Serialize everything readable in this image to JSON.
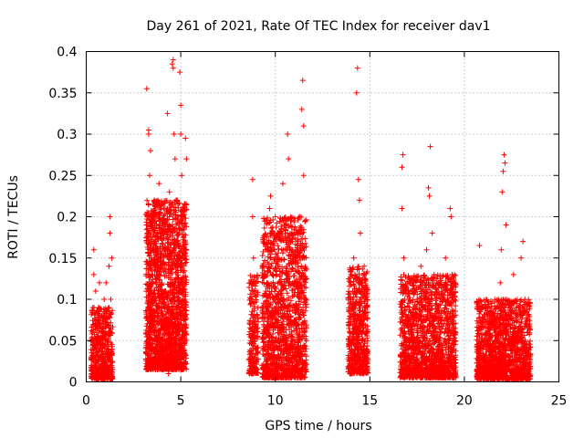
{
  "chart_data": {
    "type": "scatter",
    "title": "Day 261 of 2021, Rate Of TEC Index for receiver dav1",
    "xlabel": "GPS time / hours",
    "ylabel": "ROTI / TECUs",
    "xlim": [
      0,
      25
    ],
    "ylim": [
      0,
      0.4
    ],
    "xticks": [
      "0",
      "5",
      "10",
      "15",
      "20",
      "25"
    ],
    "yticks": [
      "0",
      "0.05",
      "0.1",
      "0.15",
      "0.2",
      "0.25",
      "0.3",
      "0.35",
      "0.4"
    ],
    "grid": true,
    "marker": "plus",
    "color": "#ff0000",
    "series": [
      {
        "points": [
          [
            0.3,
            0.02
          ],
          [
            0.3,
            0.05
          ],
          [
            0.35,
            0.09
          ],
          [
            0.4,
            0.13
          ],
          [
            0.4,
            0.16
          ],
          [
            0.45,
            0.03
          ],
          [
            0.5,
            0.07
          ],
          [
            0.5,
            0.11
          ],
          [
            0.55,
            0.01
          ],
          [
            0.6,
            0.05
          ],
          [
            0.65,
            0.09
          ],
          [
            0.7,
            0.12
          ],
          [
            0.75,
            0.04
          ],
          [
            0.8,
            0.08
          ],
          [
            0.85,
            0.02
          ],
          [
            0.9,
            0.06
          ],
          [
            0.95,
            0.1
          ],
          [
            1.0,
            0.03
          ],
          [
            1.0,
            0.07
          ],
          [
            1.05,
            0.12
          ],
          [
            1.1,
            0.02
          ],
          [
            1.15,
            0.05
          ],
          [
            1.2,
            0.09
          ],
          [
            1.2,
            0.14
          ],
          [
            1.25,
            0.18
          ],
          [
            1.25,
            0.2
          ],
          [
            1.3,
            0.06
          ],
          [
            1.3,
            0.1
          ],
          [
            1.35,
            0.02
          ],
          [
            1.35,
            0.15
          ],
          [
            3.2,
            0.355
          ],
          [
            3.3,
            0.3
          ],
          [
            3.3,
            0.305
          ],
          [
            3.4,
            0.28
          ],
          [
            3.35,
            0.25
          ],
          [
            3.4,
            0.2
          ],
          [
            3.45,
            0.15
          ],
          [
            3.5,
            0.1
          ],
          [
            3.5,
            0.05
          ],
          [
            3.55,
            0.02
          ],
          [
            3.6,
            0.22
          ],
          [
            3.65,
            0.17
          ],
          [
            3.7,
            0.12
          ],
          [
            3.75,
            0.07
          ],
          [
            3.8,
            0.03
          ],
          [
            3.85,
            0.24
          ],
          [
            3.9,
            0.19
          ],
          [
            3.95,
            0.14
          ],
          [
            4.0,
            0.09
          ],
          [
            4.05,
            0.04
          ],
          [
            4.1,
            0.21
          ],
          [
            4.15,
            0.16
          ],
          [
            4.2,
            0.11
          ],
          [
            4.25,
            0.06
          ],
          [
            4.3,
            0.325
          ],
          [
            4.35,
            0.01
          ],
          [
            4.4,
            0.2
          ],
          [
            4.4,
            0.23
          ],
          [
            4.45,
            0.15
          ],
          [
            4.5,
            0.1
          ],
          [
            4.55,
            0.385
          ],
          [
            4.6,
            0.39
          ],
          [
            4.6,
            0.38
          ],
          [
            4.65,
            0.3
          ],
          [
            4.7,
            0.27
          ],
          [
            4.75,
            0.22
          ],
          [
            4.8,
            0.17
          ],
          [
            4.85,
            0.12
          ],
          [
            4.9,
            0.07
          ],
          [
            4.9,
            0.02
          ],
          [
            4.95,
            0.375
          ],
          [
            5.0,
            0.335
          ],
          [
            5.0,
            0.3
          ],
          [
            5.05,
            0.25
          ],
          [
            5.1,
            0.2
          ],
          [
            5.15,
            0.15
          ],
          [
            5.2,
            0.1
          ],
          [
            5.2,
            0.05
          ],
          [
            5.25,
            0.295
          ],
          [
            5.3,
            0.27
          ],
          [
            8.7,
            0.05
          ],
          [
            8.75,
            0.1
          ],
          [
            8.8,
            0.2
          ],
          [
            8.8,
            0.245
          ],
          [
            8.85,
            0.15
          ],
          [
            8.9,
            0.03
          ],
          [
            8.95,
            0.07
          ],
          [
            9.0,
            0.12
          ],
          [
            9.3,
            0.02
          ],
          [
            9.4,
            0.06
          ],
          [
            9.5,
            0.11
          ],
          [
            9.6,
            0.16
          ],
          [
            9.7,
            0.21
          ],
          [
            9.75,
            0.225
          ],
          [
            9.8,
            0.18
          ],
          [
            9.85,
            0.13
          ],
          [
            9.9,
            0.08
          ],
          [
            9.95,
            0.03
          ],
          [
            10.0,
            0.2
          ],
          [
            10.1,
            0.15
          ],
          [
            10.2,
            0.1
          ],
          [
            10.3,
            0.05
          ],
          [
            10.4,
            0.24
          ],
          [
            10.5,
            0.19
          ],
          [
            10.6,
            0.14
          ],
          [
            10.65,
            0.3
          ],
          [
            10.7,
            0.27
          ],
          [
            10.7,
            0.09
          ],
          [
            10.8,
            0.04
          ],
          [
            10.9,
            0.17
          ],
          [
            11.0,
            0.12
          ],
          [
            11.1,
            0.07
          ],
          [
            11.2,
            0.02
          ],
          [
            11.3,
            0.2
          ],
          [
            11.4,
            0.33
          ],
          [
            11.45,
            0.365
          ],
          [
            11.5,
            0.31
          ],
          [
            11.5,
            0.25
          ],
          [
            11.55,
            0.15
          ],
          [
            11.6,
            0.1
          ],
          [
            13.9,
            0.03
          ],
          [
            13.95,
            0.08
          ],
          [
            14.0,
            0.13
          ],
          [
            14.05,
            0.05
          ],
          [
            14.1,
            0.1
          ],
          [
            14.15,
            0.15
          ],
          [
            14.2,
            0.02
          ],
          [
            14.25,
            0.06
          ],
          [
            14.3,
            0.35
          ],
          [
            14.35,
            0.38
          ],
          [
            14.4,
            0.245
          ],
          [
            14.45,
            0.22
          ],
          [
            14.5,
            0.18
          ],
          [
            14.55,
            0.12
          ],
          [
            14.6,
            0.07
          ],
          [
            14.65,
            0.02
          ],
          [
            14.7,
            0.14
          ],
          [
            14.75,
            0.09
          ],
          [
            14.8,
            0.04
          ],
          [
            14.85,
            0.11
          ],
          [
            16.7,
            0.26
          ],
          [
            16.7,
            0.21
          ],
          [
            16.75,
            0.275
          ],
          [
            16.8,
            0.15
          ],
          [
            16.85,
            0.1
          ],
          [
            16.9,
            0.05
          ],
          [
            16.95,
            0.02
          ],
          [
            17.1,
            0.12
          ],
          [
            17.2,
            0.07
          ],
          [
            17.3,
            0.03
          ],
          [
            17.5,
            0.1
          ],
          [
            17.6,
            0.05
          ],
          [
            17.7,
            0.14
          ],
          [
            17.8,
            0.09
          ],
          [
            17.9,
            0.04
          ],
          [
            18.0,
            0.16
          ],
          [
            18.1,
            0.235
          ],
          [
            18.15,
            0.225
          ],
          [
            18.2,
            0.285
          ],
          [
            18.3,
            0.18
          ],
          [
            18.4,
            0.13
          ],
          [
            18.5,
            0.08
          ],
          [
            18.6,
            0.03
          ],
          [
            18.7,
            0.12
          ],
          [
            18.8,
            0.07
          ],
          [
            18.9,
            0.02
          ],
          [
            19.0,
            0.15
          ],
          [
            19.1,
            0.1
          ],
          [
            19.2,
            0.05
          ],
          [
            19.25,
            0.21
          ],
          [
            19.3,
            0.2
          ],
          [
            19.35,
            0.13
          ],
          [
            19.4,
            0.08
          ],
          [
            19.45,
            0.03
          ],
          [
            19.5,
            0.06
          ],
          [
            20.7,
            0.01
          ],
          [
            20.75,
            0.03
          ],
          [
            20.8,
            0.065
          ],
          [
            20.85,
            0.085
          ],
          [
            20.8,
            0.165
          ],
          [
            21.0,
            0.02
          ],
          [
            21.2,
            0.05
          ],
          [
            21.4,
            0.03
          ],
          [
            21.6,
            0.07
          ],
          [
            21.8,
            0.1
          ],
          [
            21.9,
            0.12
          ],
          [
            21.95,
            0.16
          ],
          [
            22.0,
            0.23
          ],
          [
            22.05,
            0.255
          ],
          [
            22.1,
            0.275
          ],
          [
            22.15,
            0.265
          ],
          [
            22.2,
            0.19
          ],
          [
            22.4,
            0.09
          ],
          [
            22.6,
            0.13
          ],
          [
            22.8,
            0.06
          ],
          [
            23.0,
            0.15
          ],
          [
            23.1,
            0.17
          ],
          [
            23.2,
            0.1
          ],
          [
            23.3,
            0.04
          ],
          [
            23.45,
            0.07
          ]
        ]
      }
    ],
    "dense_clusters": [
      {
        "from": 0.25,
        "to": 1.4,
        "ymin": 0.003,
        "ymax": 0.09,
        "n": 520
      },
      {
        "from": 3.15,
        "to": 5.3,
        "ymin": 0.015,
        "ymax": 0.22,
        "n": 1900
      },
      {
        "from": 8.6,
        "to": 9.1,
        "ymin": 0.01,
        "ymax": 0.13,
        "n": 220
      },
      {
        "from": 9.3,
        "to": 11.65,
        "ymin": 0.005,
        "ymax": 0.2,
        "n": 1400
      },
      {
        "from": 13.85,
        "to": 14.9,
        "ymin": 0.01,
        "ymax": 0.14,
        "n": 550
      },
      {
        "from": 16.6,
        "to": 19.55,
        "ymin": 0.005,
        "ymax": 0.13,
        "n": 1500
      },
      {
        "from": 20.65,
        "to": 23.5,
        "ymin": 0.003,
        "ymax": 0.1,
        "n": 1500
      }
    ]
  }
}
